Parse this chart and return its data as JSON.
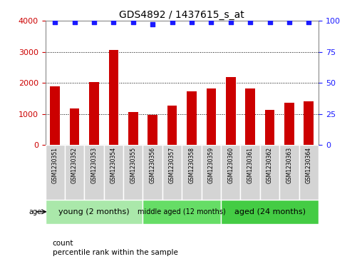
{
  "title": "GDS4892 / 1437615_s_at",
  "samples": [
    "GSM1230351",
    "GSM1230352",
    "GSM1230353",
    "GSM1230354",
    "GSM1230355",
    "GSM1230356",
    "GSM1230357",
    "GSM1230358",
    "GSM1230359",
    "GSM1230360",
    "GSM1230361",
    "GSM1230362",
    "GSM1230363",
    "GSM1230364"
  ],
  "counts": [
    1900,
    1170,
    2030,
    3070,
    1060,
    960,
    1270,
    1730,
    1810,
    2190,
    1810,
    1140,
    1360,
    1410
  ],
  "percentile_ranks": [
    99,
    99,
    99,
    99,
    99,
    97,
    99,
    99,
    99,
    99,
    99,
    99,
    99,
    99
  ],
  "bar_color": "#cc0000",
  "dot_color": "#1a1aff",
  "ylim_left": [
    0,
    4000
  ],
  "ylim_right": [
    0,
    100
  ],
  "yticks_left": [
    0,
    1000,
    2000,
    3000,
    4000
  ],
  "yticks_right": [
    0,
    25,
    50,
    75,
    100
  ],
  "groups": [
    {
      "label": "young (2 months)",
      "start": 0,
      "end": 5,
      "color": "#aae8aa",
      "fontsize": 8
    },
    {
      "label": "middle aged (12 months)",
      "start": 5,
      "end": 9,
      "color": "#66dd66",
      "fontsize": 7
    },
    {
      "label": "aged (24 months)",
      "start": 9,
      "end": 14,
      "color": "#44cc44",
      "fontsize": 8
    }
  ],
  "group_label_prefix": "age",
  "legend_count_label": "count",
  "legend_percentile_label": "percentile rank within the sample",
  "background_color": "#ffffff",
  "plot_bg_color": "#ffffff",
  "sample_box_color": "#d4d4d4",
  "grid_color": "#000000",
  "title_fontsize": 10,
  "tick_fontsize": 8,
  "bar_width": 0.5,
  "left_color": "#cc0000",
  "right_color": "#1a1aff"
}
